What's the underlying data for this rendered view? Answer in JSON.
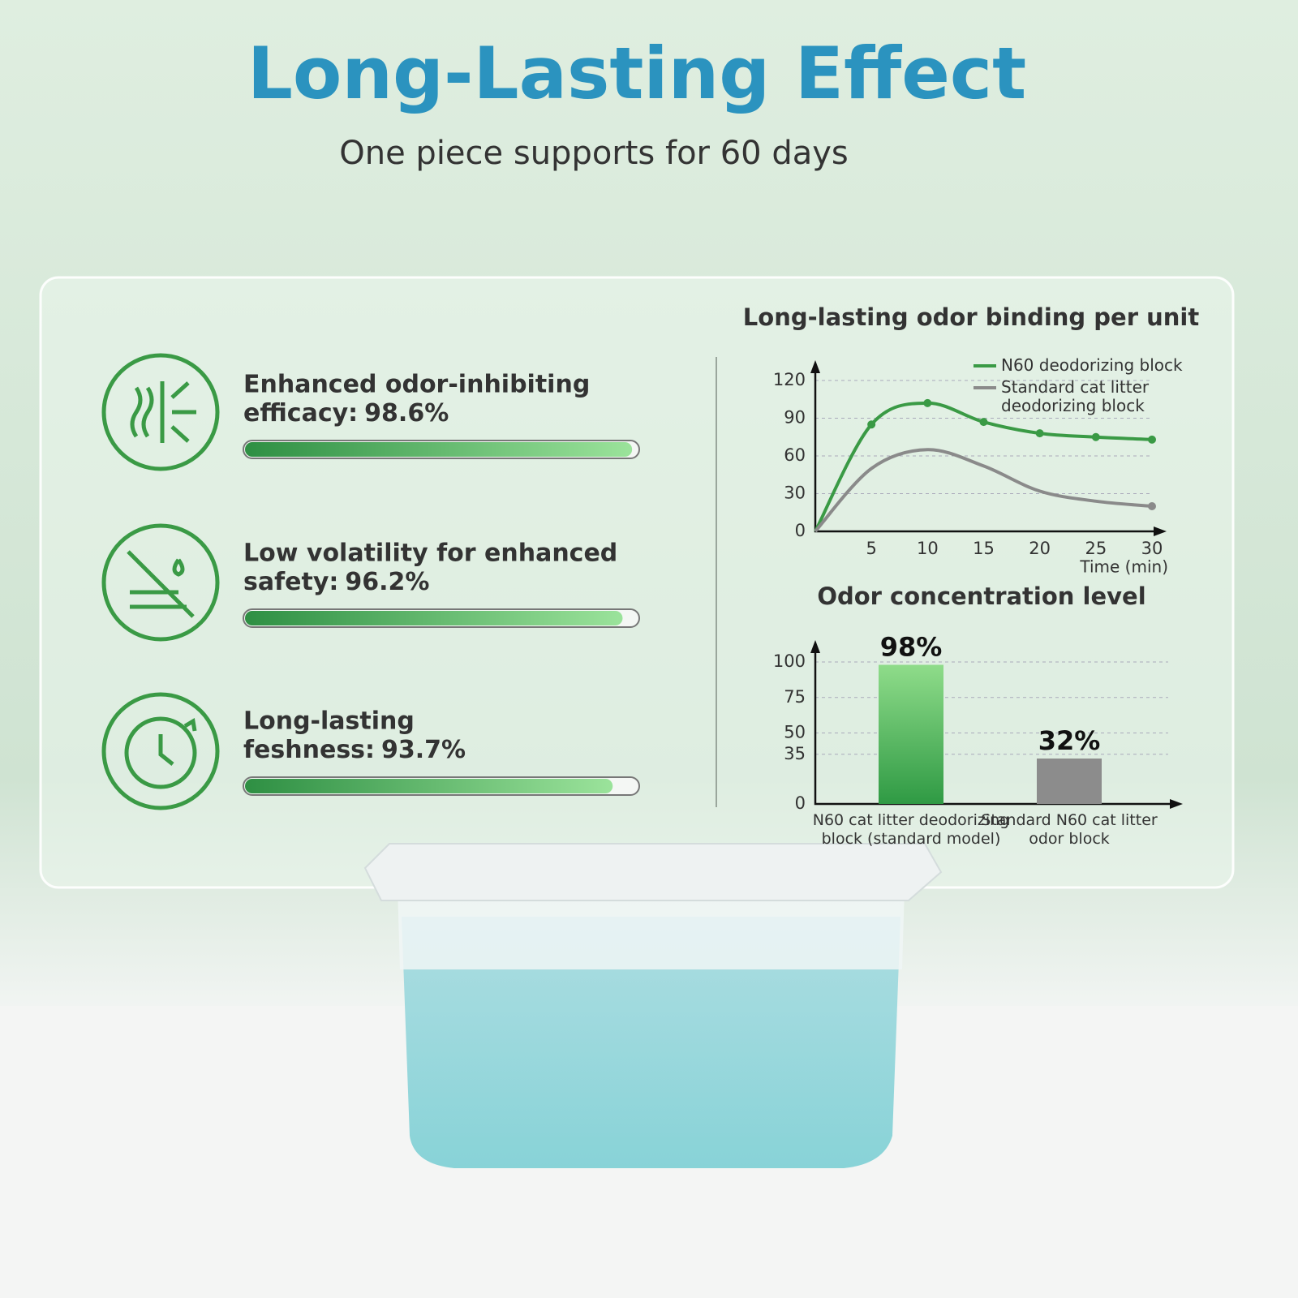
{
  "header": {
    "title": "Long-Lasting Effect",
    "subtitle": "One piece supports for 60 days"
  },
  "features": {
    "xlim": [
      0,
      100
    ],
    "items": [
      {
        "lines": [
          "Enhanced  odor-inhibiting",
          "efficacy:"
        ],
        "value": 98.6,
        "value_label": "98.6%"
      },
      {
        "lines": [
          "Low volatility for enhanced",
          "safety:"
        ],
        "value": 96.2,
        "value_label": "96.2%"
      },
      {
        "lines": [
          "Long-lasting",
          "feshness:"
        ],
        "value": 93.7,
        "value_label": "93.7%"
      }
    ]
  },
  "chart_data": [
    {
      "type": "line",
      "title": "Long-lasting odor binding per unit",
      "x_label": "Time (min)",
      "x": [
        0,
        5,
        10,
        15,
        20,
        25,
        30
      ],
      "xlim": [
        0,
        30
      ],
      "xticks": [
        5,
        10,
        15,
        20,
        25,
        30
      ],
      "ylim": [
        0,
        120
      ],
      "yticks": [
        0,
        30,
        60,
        90,
        120
      ],
      "grid": true,
      "series": [
        {
          "name": "N60 deodorizing block",
          "color": "#3a9a45",
          "values": [
            0,
            85,
            102,
            87,
            78,
            75,
            73
          ]
        },
        {
          "name": "Standard cat litter deodorizing block",
          "color": "#8a8a8a",
          "values": [
            0,
            50,
            65,
            52,
            32,
            24,
            20
          ]
        }
      ]
    },
    {
      "type": "bar",
      "title": "Odor concentration level",
      "categories": [
        "N60 cat litter deodorizing block (standard model)",
        "Standard N60 cat litter odor block"
      ],
      "values": [
        98,
        32
      ],
      "value_labels": [
        "98%",
        "32%"
      ],
      "colors": [
        "#4caf50",
        "#8c8c8c"
      ],
      "ylim": [
        0,
        100
      ],
      "yticks": [
        0,
        35,
        50,
        75,
        100
      ],
      "grid": true
    }
  ]
}
